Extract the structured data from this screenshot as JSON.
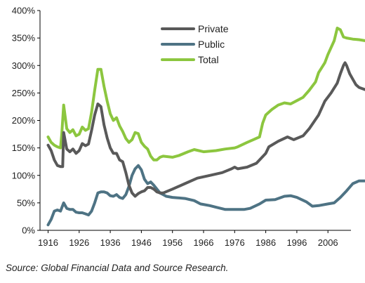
{
  "chart_data": {
    "type": "line",
    "title": "",
    "xlabel": "",
    "ylabel": "",
    "xlim": [
      1916,
      2013
    ],
    "ylim": [
      0,
      400
    ],
    "x_ticks": [
      1916,
      1926,
      1936,
      1946,
      1956,
      1966,
      1976,
      1986,
      1996,
      2006
    ],
    "y_ticks": [
      0,
      50,
      100,
      150,
      200,
      250,
      300,
      350,
      400
    ],
    "y_tick_format": "{v}%",
    "grid": false,
    "legend_position": "top-center",
    "series": [
      {
        "name": "Private",
        "color": "#595959",
        "points": [
          [
            1916,
            155
          ],
          [
            1917,
            145
          ],
          [
            1918,
            128
          ],
          [
            1919,
            118
          ],
          [
            1920,
            116
          ],
          [
            1920.7,
            116
          ],
          [
            1921,
            178
          ],
          [
            1922,
            148
          ],
          [
            1923,
            143
          ],
          [
            1924,
            148
          ],
          [
            1925,
            140
          ],
          [
            1926,
            145
          ],
          [
            1927,
            158
          ],
          [
            1928,
            154
          ],
          [
            1929,
            157
          ],
          [
            1930,
            182
          ],
          [
            1931,
            210
          ],
          [
            1932,
            230
          ],
          [
            1933,
            225
          ],
          [
            1934,
            192
          ],
          [
            1935,
            168
          ],
          [
            1936,
            150
          ],
          [
            1937,
            140
          ],
          [
            1938,
            140
          ],
          [
            1939,
            128
          ],
          [
            1940,
            125
          ],
          [
            1941,
            105
          ],
          [
            1942,
            82
          ],
          [
            1943,
            68
          ],
          [
            1944,
            62
          ],
          [
            1945,
            67
          ],
          [
            1946,
            70
          ],
          [
            1947,
            72
          ],
          [
            1948,
            78
          ],
          [
            1949,
            78
          ],
          [
            1950,
            75
          ],
          [
            1951,
            70
          ],
          [
            1952,
            68
          ],
          [
            1953,
            68
          ],
          [
            1956,
            75
          ],
          [
            1960,
            85
          ],
          [
            1964,
            95
          ],
          [
            1968,
            100
          ],
          [
            1972,
            105
          ],
          [
            1975,
            112
          ],
          [
            1976,
            115
          ],
          [
            1977,
            112
          ],
          [
            1980,
            115
          ],
          [
            1983,
            122
          ],
          [
            1986,
            140
          ],
          [
            1987,
            152
          ],
          [
            1990,
            162
          ],
          [
            1993,
            170
          ],
          [
            1995,
            165
          ],
          [
            1998,
            172
          ],
          [
            2000,
            185
          ],
          [
            2003,
            210
          ],
          [
            2005,
            235
          ],
          [
            2007,
            250
          ],
          [
            2009,
            268
          ],
          [
            2010,
            285
          ],
          [
            2011,
            300
          ],
          [
            2011.5,
            305
          ],
          [
            2012,
            300
          ],
          [
            2013,
            285
          ],
          [
            2014,
            275
          ],
          [
            2015,
            265
          ],
          [
            2016,
            260
          ],
          [
            2017,
            258
          ],
          [
            2018,
            256
          ]
        ]
      },
      {
        "name": "Public",
        "color": "#4e7384",
        "points": [
          [
            1916,
            10
          ],
          [
            1917,
            20
          ],
          [
            1918,
            35
          ],
          [
            1919,
            37
          ],
          [
            1920,
            35
          ],
          [
            1921,
            50
          ],
          [
            1922,
            40
          ],
          [
            1923,
            38
          ],
          [
            1924,
            38
          ],
          [
            1925,
            33
          ],
          [
            1926,
            32
          ],
          [
            1927,
            32
          ],
          [
            1928,
            30
          ],
          [
            1929,
            28
          ],
          [
            1930,
            35
          ],
          [
            1931,
            50
          ],
          [
            1932,
            68
          ],
          [
            1933,
            70
          ],
          [
            1934,
            70
          ],
          [
            1935,
            68
          ],
          [
            1936,
            63
          ],
          [
            1937,
            62
          ],
          [
            1938,
            65
          ],
          [
            1939,
            60
          ],
          [
            1940,
            58
          ],
          [
            1941,
            65
          ],
          [
            1942,
            80
          ],
          [
            1943,
            100
          ],
          [
            1944,
            112
          ],
          [
            1945,
            118
          ],
          [
            1946,
            110
          ],
          [
            1947,
            93
          ],
          [
            1948,
            85
          ],
          [
            1949,
            88
          ],
          [
            1950,
            82
          ],
          [
            1951,
            75
          ],
          [
            1952,
            68
          ],
          [
            1953,
            65
          ],
          [
            1954,
            62
          ],
          [
            1956,
            60
          ],
          [
            1960,
            58
          ],
          [
            1963,
            54
          ],
          [
            1965,
            48
          ],
          [
            1968,
            45
          ],
          [
            1970,
            42
          ],
          [
            1973,
            38
          ],
          [
            1976,
            38
          ],
          [
            1979,
            38
          ],
          [
            1981,
            40
          ],
          [
            1984,
            48
          ],
          [
            1986,
            55
          ],
          [
            1989,
            56
          ],
          [
            1992,
            62
          ],
          [
            1994,
            63
          ],
          [
            1996,
            60
          ],
          [
            1999,
            52
          ],
          [
            2001,
            44
          ],
          [
            2003,
            45
          ],
          [
            2006,
            48
          ],
          [
            2008,
            50
          ],
          [
            2010,
            60
          ],
          [
            2012,
            72
          ],
          [
            2014,
            85
          ],
          [
            2016,
            90
          ],
          [
            2018,
            90
          ]
        ]
      },
      {
        "name": "Total",
        "color": "#8cc63f",
        "points": [
          [
            1916,
            170
          ],
          [
            1917,
            160
          ],
          [
            1918,
            155
          ],
          [
            1919,
            152
          ],
          [
            1920,
            150
          ],
          [
            1920.4,
            175
          ],
          [
            1921,
            228
          ],
          [
            1922,
            185
          ],
          [
            1923,
            178
          ],
          [
            1924,
            183
          ],
          [
            1925,
            172
          ],
          [
            1926,
            175
          ],
          [
            1927,
            188
          ],
          [
            1928,
            182
          ],
          [
            1929,
            185
          ],
          [
            1930,
            215
          ],
          [
            1931,
            255
          ],
          [
            1932,
            293
          ],
          [
            1933,
            293
          ],
          [
            1934,
            262
          ],
          [
            1935,
            235
          ],
          [
            1936,
            212
          ],
          [
            1937,
            200
          ],
          [
            1938,
            205
          ],
          [
            1939,
            190
          ],
          [
            1940,
            180
          ],
          [
            1941,
            167
          ],
          [
            1942,
            160
          ],
          [
            1943,
            165
          ],
          [
            1944,
            178
          ],
          [
            1945,
            176
          ],
          [
            1946,
            160
          ],
          [
            1947,
            153
          ],
          [
            1948,
            148
          ],
          [
            1949,
            135
          ],
          [
            1950,
            128
          ],
          [
            1951,
            128
          ],
          [
            1952,
            133
          ],
          [
            1953,
            135
          ],
          [
            1956,
            133
          ],
          [
            1958,
            136
          ],
          [
            1961,
            143
          ],
          [
            1963,
            147
          ],
          [
            1966,
            143
          ],
          [
            1970,
            145
          ],
          [
            1973,
            148
          ],
          [
            1976,
            150
          ],
          [
            1977,
            152
          ],
          [
            1980,
            160
          ],
          [
            1982,
            165
          ],
          [
            1984,
            170
          ],
          [
            1985,
            195
          ],
          [
            1986,
            210
          ],
          [
            1988,
            220
          ],
          [
            1990,
            228
          ],
          [
            1992,
            232
          ],
          [
            1994,
            230
          ],
          [
            1996,
            236
          ],
          [
            1998,
            242
          ],
          [
            2000,
            255
          ],
          [
            2002,
            270
          ],
          [
            2003,
            287
          ],
          [
            2005,
            305
          ],
          [
            2006,
            320
          ],
          [
            2008,
            345
          ],
          [
            2009,
            368
          ],
          [
            2010,
            365
          ],
          [
            2011,
            352
          ],
          [
            2012,
            350
          ],
          [
            2014,
            348
          ],
          [
            2016,
            347
          ],
          [
            2018,
            345
          ]
        ]
      }
    ]
  },
  "source_note": "Source: Global Financial Data and Source Research."
}
